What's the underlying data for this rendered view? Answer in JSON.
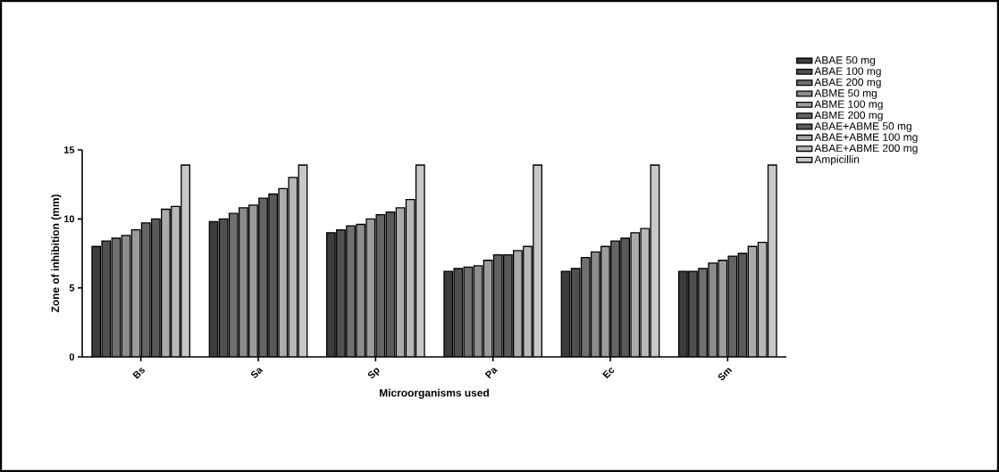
{
  "chart_data": {
    "type": "bar",
    "xlabel": "Microorganisms used",
    "ylabel": "Zone of inhibition (mm)",
    "categories": [
      "Bs",
      "Sa",
      "Sp",
      "Pa",
      "Ec",
      "Sm"
    ],
    "ylim": [
      0,
      15
    ],
    "yticks": [
      0,
      5,
      10,
      15
    ],
    "legend": "right",
    "grid": false,
    "series": [
      {
        "name": "ABAE 50 mg",
        "color": "#3c3c3c",
        "values": [
          8.0,
          9.8,
          9.0,
          6.2,
          6.2,
          6.2
        ]
      },
      {
        "name": "ABAE 100 mg",
        "color": "#505050",
        "values": [
          8.4,
          10.0,
          9.2,
          6.4,
          6.4,
          6.2
        ]
      },
      {
        "name": "ABAE 200 mg",
        "color": "#707070",
        "values": [
          8.6,
          10.4,
          9.5,
          6.5,
          7.2,
          6.4
        ]
      },
      {
        "name": "ABME 50 mg",
        "color": "#8c8c8c",
        "values": [
          8.8,
          10.8,
          9.6,
          6.6,
          7.6,
          6.8
        ]
      },
      {
        "name": "ABME 100 mg",
        "color": "#9c9c9c",
        "values": [
          9.2,
          11.0,
          10.0,
          7.0,
          8.0,
          7.0
        ]
      },
      {
        "name": "ABME 200 mg",
        "color": "#646464",
        "values": [
          9.7,
          11.5,
          10.3,
          7.4,
          8.4,
          7.3
        ]
      },
      {
        "name": "ABAE+ABME 50 mg",
        "color": "#5a5a5a",
        "values": [
          10.0,
          11.8,
          10.5,
          7.4,
          8.6,
          7.5
        ]
      },
      {
        "name": "ABAE+ABME 100 mg",
        "color": "#aaaaaa",
        "values": [
          10.7,
          12.2,
          10.8,
          7.7,
          9.0,
          8.0
        ]
      },
      {
        "name": "ABAE+ABME 200 mg",
        "color": "#b8b8b8",
        "values": [
          10.9,
          13.0,
          11.4,
          8.0,
          9.3,
          8.3
        ]
      },
      {
        "name": "Ampicillin",
        "color": "#c8c8c8",
        "values": [
          13.9,
          13.9,
          13.9,
          13.9,
          13.9,
          13.9
        ]
      }
    ]
  }
}
